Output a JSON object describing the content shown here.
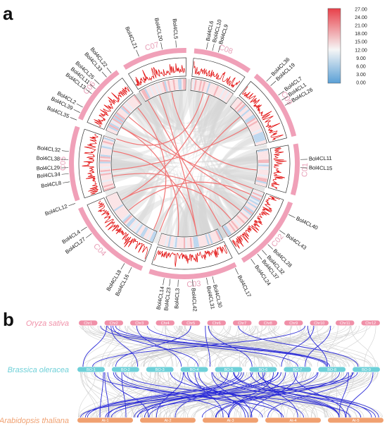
{
  "panels": {
    "a": "a",
    "b": "b"
  },
  "circos": {
    "chromosomes": [
      {
        "name": "C01",
        "start": 80,
        "end": 106
      },
      {
        "name": "C02",
        "start": 110,
        "end": 149
      },
      {
        "name": "C03",
        "start": 153,
        "end": 198
      },
      {
        "name": "C04",
        "start": 202,
        "end": 247
      },
      {
        "name": "C05",
        "start": 251,
        "end": 289
      },
      {
        "name": "C06",
        "start": 293,
        "end": 324
      },
      {
        "name": "C07",
        "start": 328,
        "end": 361
      },
      {
        "name": "C08",
        "start": 5,
        "end": 35
      },
      {
        "name": "C09",
        "start": 39,
        "end": 76
      }
    ],
    "genes": [
      {
        "label": "Bol4CL5",
        "chr": "C07",
        "angle": 356
      },
      {
        "label": "Bol4CL20",
        "chr": "C07",
        "angle": 349
      },
      {
        "label": "Bol4CL21",
        "chr": "C07",
        "angle": 337
      },
      {
        "label": "Bol4CL6",
        "chr": "C08",
        "angle": 11
      },
      {
        "label": "Bol4CL10",
        "chr": "C08",
        "angle": 14
      },
      {
        "label": "Bol4CL9",
        "chr": "C08",
        "angle": 17
      },
      {
        "label": "Bol4CL36",
        "chr": "C09",
        "angle": 45
      },
      {
        "label": "Bol4CL19",
        "chr": "C09",
        "angle": 48
      },
      {
        "label": "Bol4CL7",
        "chr": "C09",
        "angle": 54
      },
      {
        "label": "Bol4CL1",
        "chr": "C09",
        "angle": 57
      },
      {
        "label": "Bol4CL26",
        "chr": "C09",
        "angle": 60
      },
      {
        "label": "Bol4CL11",
        "chr": "C01",
        "angle": 88
      },
      {
        "label": "Bol4CL15",
        "chr": "C01",
        "angle": 92
      },
      {
        "label": "Bol4CL40",
        "chr": "C01",
        "angle": 116
      },
      {
        "label": "Bol4CL43",
        "chr": "C02",
        "angle": 125
      },
      {
        "label": "Bol4CL28",
        "chr": "C02",
        "angle": 134
      },
      {
        "label": "Bol4CL32",
        "chr": "C02",
        "angle": 138
      },
      {
        "label": "Bol4CL37",
        "chr": "C02",
        "angle": 141
      },
      {
        "label": "Bol4CL24",
        "chr": "C02",
        "angle": 145
      },
      {
        "label": "Bol4CL17",
        "chr": "C02",
        "angle": 154
      },
      {
        "label": "Bol4CL30",
        "chr": "C03",
        "angle": 166
      },
      {
        "label": "Bol4CL31",
        "chr": "C03",
        "angle": 169
      },
      {
        "label": "Bol4CL42",
        "chr": "C03",
        "angle": 176
      },
      {
        "label": "Bol4CL3",
        "chr": "C03",
        "angle": 183
      },
      {
        "label": "Bol4CL23",
        "chr": "C03",
        "angle": 187
      },
      {
        "label": "Bol4CL14",
        "chr": "C03",
        "angle": 190
      },
      {
        "label": "Bol4CL16",
        "chr": "C04",
        "angle": 207
      },
      {
        "label": "Bol4CL18",
        "chr": "C04",
        "angle": 211
      },
      {
        "label": "Bol4CL27",
        "chr": "C04",
        "angle": 233
      },
      {
        "label": "Bol4CL4",
        "chr": "C04",
        "angle": 237
      },
      {
        "label": "Bol4CL12",
        "chr": "C04",
        "angle": 250
      },
      {
        "label": "Bol4CL8",
        "chr": "C05",
        "angle": 261
      },
      {
        "label": "Bol4CL34",
        "chr": "C05",
        "angle": 265
      },
      {
        "label": "Bol4CL29",
        "chr": "C05",
        "angle": 268
      },
      {
        "label": "Bol4CL38",
        "chr": "C05",
        "angle": 272
      },
      {
        "label": "Bol4CL32",
        "chr": "C05",
        "angle": 276
      },
      {
        "label": "Bol4CL35",
        "chr": "C05",
        "angle": 292
      },
      {
        "label": "Bol4CL39",
        "chr": "C05",
        "angle": 296
      },
      {
        "label": "Bol4CL2",
        "chr": "C05",
        "angle": 299
      },
      {
        "label": "Bol4CL13",
        "chr": "C06",
        "angle": 307
      },
      {
        "label": "Bol4CL11",
        "chr": "C06",
        "angle": 310
      },
      {
        "label": "Bol4CL25",
        "chr": "C06",
        "angle": 313
      },
      {
        "label": "Bol4CL33",
        "chr": "C06",
        "angle": 318
      },
      {
        "label": "Bol4CL22",
        "chr": "C06",
        "angle": 321
      }
    ],
    "links": [
      [
        350,
        95
      ],
      [
        340,
        170
      ],
      [
        20,
        240
      ],
      [
        50,
        200
      ],
      [
        110,
        300
      ],
      [
        130,
        260
      ],
      [
        150,
        330
      ],
      [
        170,
        280
      ],
      [
        185,
        300
      ],
      [
        230,
        115
      ],
      [
        240,
        140
      ],
      [
        265,
        60
      ],
      [
        290,
        15
      ],
      [
        310,
        120
      ],
      [
        320,
        205
      ]
    ],
    "legend": {
      "ticks": [
        "27.00",
        "24.00",
        "21.00",
        "18.00",
        "15.00",
        "12.00",
        "9.00",
        "6.00",
        "3.00",
        "0.00"
      ],
      "colors": {
        "high": "#e8404a",
        "mid": "#f6f6f6",
        "low": "#5aa0d6"
      }
    }
  },
  "synteny": {
    "species": [
      {
        "name": "Oryza sativa",
        "color": "#f090a8"
      },
      {
        "name": "Brassica oleracea",
        "color": "#6ed0d8"
      },
      {
        "name": "Arabidopsis thaliana",
        "color": "#f0a070"
      }
    ],
    "oryza_chromosomes": [
      "Chr1",
      "Chr2",
      "Chr3",
      "Chr4",
      "Chr5",
      "Chr6",
      "Chr7",
      "Chr8",
      "Chr9",
      "Chr10",
      "Chr11",
      "Chr12"
    ],
    "brassica_chromosomes": [
      "BO-1",
      "BO-2",
      "BO-3",
      "BO-4",
      "BO-5",
      "BO-6",
      "BO-7",
      "BO-8",
      "BO-9"
    ],
    "arabidopsis_chromosomes": [
      "At-1",
      "At-2",
      "At-3",
      "At-4",
      "At-5"
    ]
  }
}
